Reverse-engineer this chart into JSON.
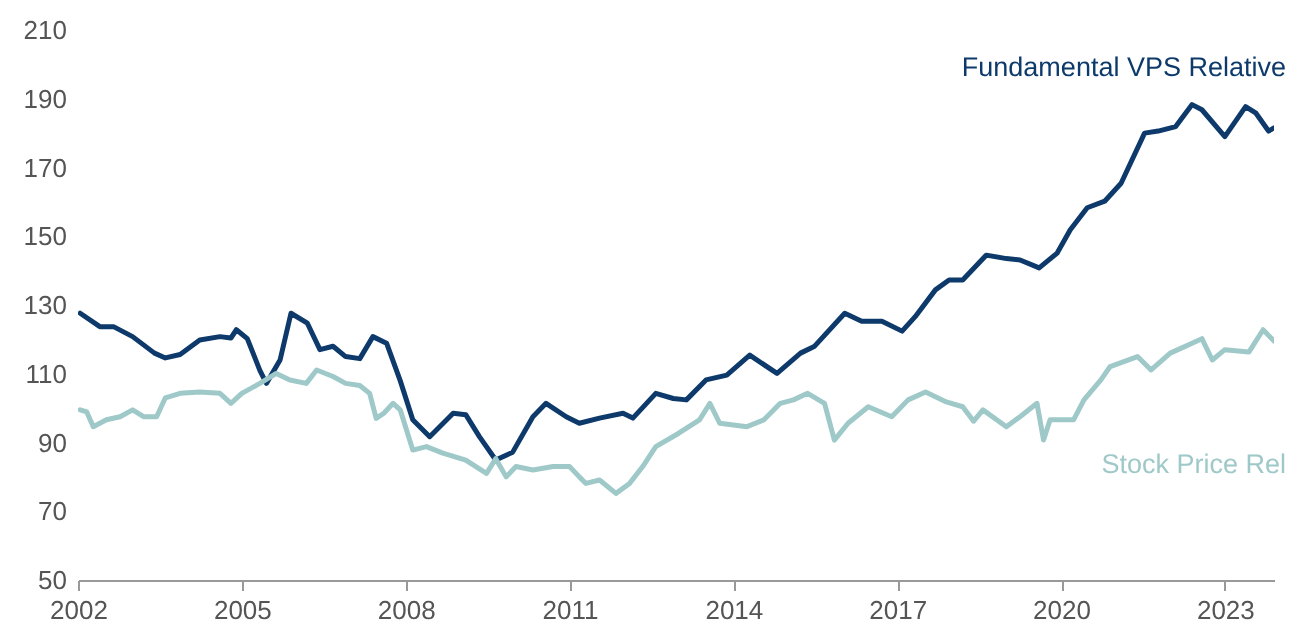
{
  "chart_data": {
    "type": "line",
    "xlim": [
      2002,
      2023.9
    ],
    "xticks": [
      2002,
      2005,
      2008,
      2011,
      2014,
      2017,
      2020,
      2023
    ],
    "ylim": [
      50,
      210
    ],
    "yticks": [
      50,
      70,
      90,
      110,
      130,
      150,
      170,
      190,
      210
    ],
    "series": [
      {
        "name": "Fundamental VPS Relative",
        "color": "#0d3a6b",
        "x": [
          2002.04,
          2002.4,
          2002.65,
          2003.0,
          2003.4,
          2003.6,
          2003.87,
          2004.23,
          2004.6,
          2004.8,
          2004.9,
          2005.1,
          2005.33,
          2005.45,
          2005.7,
          2005.9,
          2006.2,
          2006.43,
          2006.67,
          2006.9,
          2007.16,
          2007.4,
          2007.65,
          2007.9,
          2008.13,
          2008.44,
          2008.87,
          2009.1,
          2009.35,
          2009.65,
          2009.96,
          2010.33,
          2010.57,
          2010.94,
          2011.18,
          2011.55,
          2011.98,
          2012.16,
          2012.58,
          2012.9,
          2013.14,
          2013.5,
          2013.88,
          2014.3,
          2014.8,
          2015.23,
          2015.48,
          2016.04,
          2016.35,
          2016.72,
          2017.09,
          2017.33,
          2017.7,
          2017.95,
          2018.2,
          2018.63,
          2019.0,
          2019.25,
          2019.6,
          2019.93,
          2020.17,
          2020.48,
          2020.8,
          2021.1,
          2021.53,
          2021.78,
          2022.1,
          2022.4,
          2022.58,
          2023.0,
          2023.38,
          2023.57,
          2023.8,
          2023.9
        ],
        "values": [
          127.6,
          123.7,
          123.7,
          120.8,
          116,
          114.6,
          115.6,
          119.8,
          120.8,
          120.4,
          122.8,
          120.2,
          111,
          107.2,
          114,
          127.6,
          124.7,
          117,
          118,
          115,
          114.4,
          120.8,
          118.9,
          108,
          96.6,
          91.7,
          98.5,
          98.1,
          91.7,
          84.9,
          87.2,
          97.5,
          101.4,
          97.5,
          95.6,
          97.1,
          98.5,
          97.1,
          104.3,
          102.8,
          102.4,
          108.2,
          109.6,
          115.4,
          110.1,
          116,
          117.9,
          127.6,
          125.3,
          125.3,
          122.4,
          126.6,
          134.4,
          137.3,
          137.3,
          144.5,
          143.5,
          143.1,
          140.8,
          145.1,
          151.9,
          158.3,
          160.2,
          165.4,
          180,
          180.6,
          181.9,
          188.3,
          186.8,
          179,
          187.7,
          185.8,
          180.6,
          181.5
        ]
      },
      {
        "name": "Stock Price Rel",
        "color": "#9ec9c8",
        "x": [
          2002.04,
          2002.16,
          2002.28,
          2002.52,
          2002.77,
          2003.0,
          2003.2,
          2003.44,
          2003.6,
          2003.87,
          2004.23,
          2004.6,
          2004.8,
          2005.0,
          2005.33,
          2005.63,
          2005.88,
          2006.18,
          2006.37,
          2006.67,
          2006.9,
          2007.16,
          2007.34,
          2007.46,
          2007.6,
          2007.77,
          2007.9,
          2008.13,
          2008.38,
          2008.68,
          2009.1,
          2009.48,
          2009.65,
          2009.84,
          2010.02,
          2010.33,
          2010.7,
          2011.0,
          2011.18,
          2011.3,
          2011.55,
          2011.85,
          2012.1,
          2012.34,
          2012.58,
          2013.0,
          2013.38,
          2013.57,
          2013.75,
          2014.25,
          2014.56,
          2014.86,
          2015.1,
          2015.36,
          2015.67,
          2015.85,
          2016.1,
          2016.47,
          2016.9,
          2017.2,
          2017.52,
          2017.9,
          2018.2,
          2018.4,
          2018.57,
          2019.0,
          2019.25,
          2019.56,
          2019.68,
          2019.8,
          2020.23,
          2020.42,
          2020.73,
          2020.9,
          2021.4,
          2021.65,
          2022.0,
          2022.4,
          2022.58,
          2022.77,
          2023.0,
          2023.44,
          2023.7,
          2023.9
        ],
        "values": [
          99.5,
          98.9,
          94.6,
          96.6,
          97.5,
          99.5,
          97.5,
          97.5,
          103,
          104.3,
          104.7,
          104.3,
          101.4,
          104.3,
          107.2,
          110.1,
          108.2,
          107.2,
          111.1,
          109.2,
          107.2,
          106.6,
          104.3,
          97,
          98.5,
          101.4,
          99.5,
          87.8,
          88.8,
          86.9,
          84.9,
          81,
          85.3,
          80,
          83,
          82,
          83,
          83,
          80,
          78.1,
          79.1,
          75.2,
          78.1,
          83,
          88.8,
          92.7,
          96.6,
          101.4,
          95.6,
          94.6,
          96.6,
          101.4,
          102.4,
          104.3,
          101.4,
          90.7,
          95.6,
          100.4,
          97.5,
          102.4,
          104.7,
          101.8,
          100.4,
          96.2,
          99.5,
          94.6,
          97.5,
          101.4,
          90.7,
          96.6,
          96.6,
          102.4,
          108.2,
          112.1,
          115,
          111.1,
          116,
          118.9,
          120.2,
          114,
          117,
          116.3,
          122.8,
          119.5
        ]
      }
    ]
  }
}
